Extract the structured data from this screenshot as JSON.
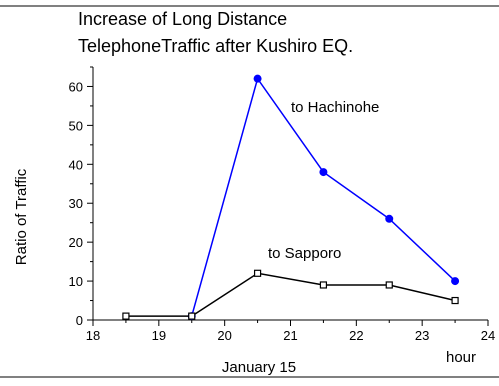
{
  "chart_data": {
    "type": "line",
    "title_lines": [
      "Increase of  Long Distance",
      "TelephoneTraffic after Kushiro EQ."
    ],
    "xlabel": "January 15",
    "xlabel_unit": "hour",
    "ylabel": "Ratio of Traffic",
    "xlim": [
      18,
      24
    ],
    "ylim": [
      0,
      65
    ],
    "x_ticks": [
      "18",
      "19",
      "20",
      "21",
      "22",
      "23",
      "24"
    ],
    "y_ticks": [
      "0",
      "10",
      "20",
      "30",
      "40",
      "50",
      "60"
    ],
    "series": [
      {
        "name": "to Hachinohe",
        "color": "#0000ff",
        "marker": "filled-circle",
        "points": [
          [
            19.5,
            1
          ],
          [
            20.5,
            62
          ],
          [
            21.5,
            38
          ],
          [
            22.5,
            26
          ],
          [
            23.5,
            10
          ]
        ]
      },
      {
        "name": "to Sapporo",
        "color": "#000000",
        "marker": "open-square",
        "points": [
          [
            18.5,
            1
          ],
          [
            19.5,
            1
          ],
          [
            20.5,
            12
          ],
          [
            21.5,
            9
          ],
          [
            22.5,
            9
          ],
          [
            23.5,
            5
          ]
        ]
      }
    ]
  }
}
